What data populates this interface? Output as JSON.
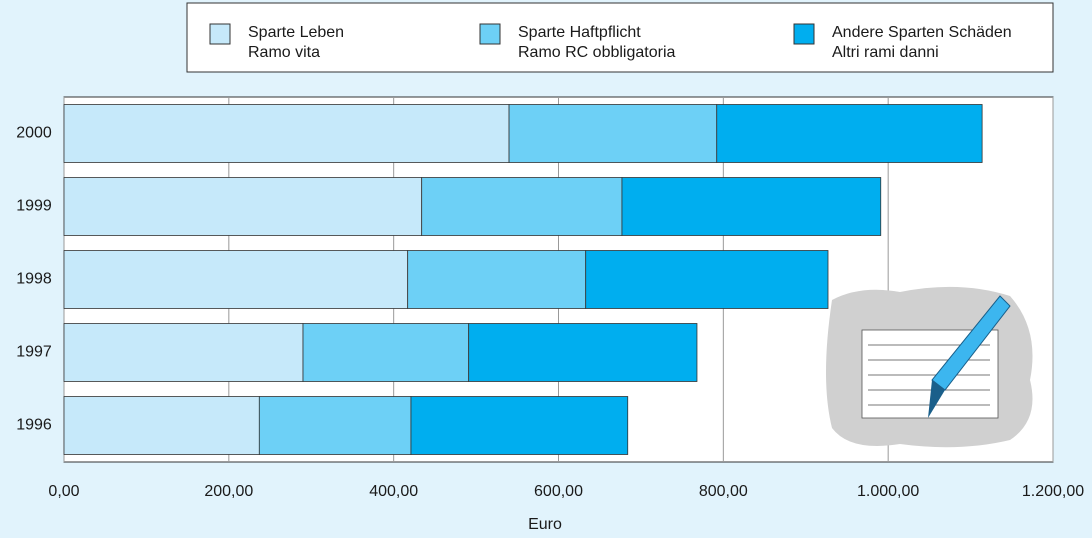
{
  "chart_data": {
    "type": "stacked_barh",
    "categories": [
      "2000",
      "1999",
      "1998",
      "1997",
      "1996"
    ],
    "series": [
      {
        "name": [
          "Sparte Leben",
          "Ramo vita"
        ],
        "color": "#c6e9fa",
        "values": [
          540,
          434,
          417,
          290,
          237
        ]
      },
      {
        "name": [
          "Sparte Haftpflicht",
          "Ramo RC obbligatoria"
        ],
        "color": "#6dd0f6",
        "values": [
          252,
          243,
          216,
          201,
          184
        ]
      },
      {
        "name": [
          "Andere Sparten Schäden",
          "Altri rami danni"
        ],
        "color": "#00aeef",
        "values": [
          322,
          314,
          294,
          277,
          263
        ]
      }
    ],
    "xlabel": "Euro",
    "xlim": [
      0,
      1200
    ],
    "xticks": [
      {
        "value": 0,
        "label": "0,00"
      },
      {
        "value": 200,
        "label": "200,00"
      },
      {
        "value": 400,
        "label": "400,00"
      },
      {
        "value": 600,
        "label": "600,00"
      },
      {
        "value": 800,
        "label": "800,00"
      },
      {
        "value": 1000,
        "label": "1.000,00"
      },
      {
        "value": 1200,
        "label": "1.200,00"
      }
    ],
    "grid": true
  }
}
